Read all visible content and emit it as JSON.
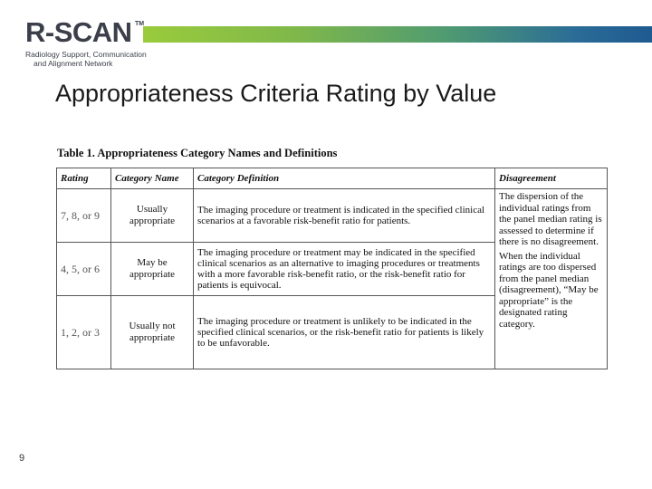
{
  "logo": {
    "name": "R-SCAN",
    "trademark": "TM",
    "tagline_line1": "Radiology Support, Communication",
    "tagline_line2": "and Alignment Network"
  },
  "colors": {
    "bar_start": "#9acb3c",
    "bar_end": "#1f5a90",
    "logo_text": "#3b3f49"
  },
  "slide": {
    "title": "Appropriateness Criteria Rating by Value",
    "page_number": "9"
  },
  "table": {
    "caption": "Table 1. Appropriateness Category Names and Definitions",
    "headers": [
      "Rating",
      "Category Name",
      "Category Definition",
      "Disagreement"
    ],
    "rows": [
      {
        "rating": "7, 8, or 9",
        "category": "Usually appropriate",
        "definition": "The imaging procedure or treatment is indicated in the specified clinical scenarios at a favorable risk-benefit ratio for patients."
      },
      {
        "rating": "4, 5, or 6",
        "category": "May be appropriate",
        "definition": "The imaging procedure or treatment may be indicated in the specified clinical scenarios as an alternative to imaging procedures or treatments with a more favorable risk-benefit ratio, or the risk-benefit ratio for patients is equivocal."
      },
      {
        "rating": "1, 2, or 3",
        "category": "Usually not appropriate",
        "definition": "The imaging procedure or treatment is unlikely to be indicated in the specified clinical scenarios, or the risk-benefit ratio for patients is likely to be unfavorable."
      }
    ],
    "disagreement_p1": "The dispersion of the individual ratings from the panel median rating is assessed to determine if there is no disagreement.",
    "disagreement_p2": "When the individual ratings are too dispersed from the panel median (disagreement), “May be appropriate” is the designated rating category."
  }
}
